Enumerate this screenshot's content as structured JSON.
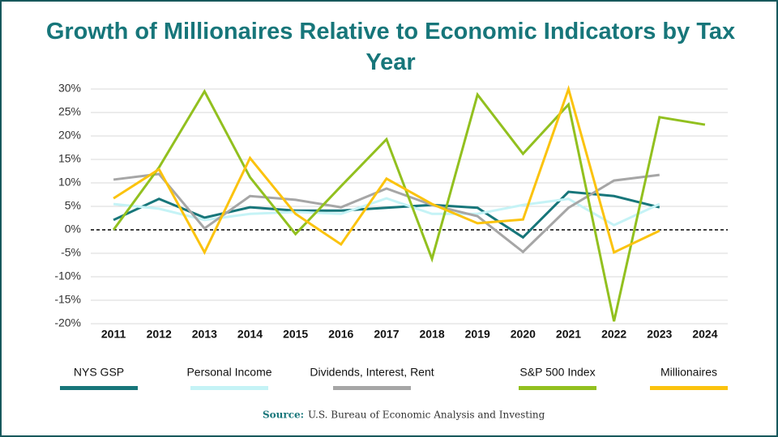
{
  "chart_data": {
    "type": "line",
    "title": "Growth of Millionaires Relative to Economic Indicators by Tax Year",
    "categories": [
      "2011",
      "2012",
      "2013",
      "2014",
      "2015",
      "2016",
      "2017",
      "2018",
      "2019",
      "2020",
      "2021",
      "2022",
      "2023",
      "2024"
    ],
    "series": [
      {
        "name": "NYS GSP",
        "color": "#17767a",
        "values": [
          2.1,
          6.6,
          2.6,
          4.8,
          4.1,
          4.1,
          4.7,
          5.3,
          4.7,
          -1.6,
          8.1,
          7.2,
          4.8,
          null
        ]
      },
      {
        "name": "Personal Income",
        "color": "#c5f3f6",
        "values": [
          5.5,
          4.5,
          2.1,
          3.4,
          3.8,
          3.4,
          6.7,
          3.4,
          3.4,
          5.3,
          6.6,
          1.0,
          5.5,
          null
        ]
      },
      {
        "name": "Dividends, Interest, Rent",
        "color": "#a6a6a6",
        "values": [
          10.7,
          11.9,
          0.3,
          7.2,
          6.4,
          4.8,
          8.8,
          5.3,
          2.9,
          -4.7,
          4.7,
          10.5,
          11.7,
          null
        ]
      },
      {
        "name": "S&P 500 Index",
        "color": "#92c01f",
        "values": [
          0,
          13.3,
          29.5,
          11.2,
          -0.9,
          9.3,
          19.3,
          -6.2,
          28.8,
          16.2,
          26.7,
          -19.5,
          24.0,
          22.4
        ]
      },
      {
        "name": "Millionaires",
        "color": "#fbc30e",
        "values": [
          6.7,
          12.9,
          -4.8,
          15.3,
          3.4,
          -3.1,
          10.9,
          5.5,
          1.4,
          2.2,
          30.0,
          -4.8,
          -0.2,
          null
        ]
      }
    ],
    "ylim": [
      -20,
      30
    ],
    "yticks": [
      {
        "value": -20,
        "label": "-20%"
      },
      {
        "value": -15,
        "label": "-15%"
      },
      {
        "value": -10,
        "label": "-10%"
      },
      {
        "value": -5,
        "label": "-5%"
      },
      {
        "value": 0,
        "label": "0%"
      },
      {
        "value": 5,
        "label": "5%"
      },
      {
        "value": 10,
        "label": "10%"
      },
      {
        "value": 15,
        "label": "15%"
      },
      {
        "value": 20,
        "label": "20%"
      },
      {
        "value": 25,
        "label": "25%"
      },
      {
        "value": 30,
        "label": "30%"
      }
    ],
    "grid": true,
    "legend": "bottom",
    "source": {
      "label": "Source:",
      "text": "U.S. Bureau of Economic Analysis and Investing"
    }
  }
}
